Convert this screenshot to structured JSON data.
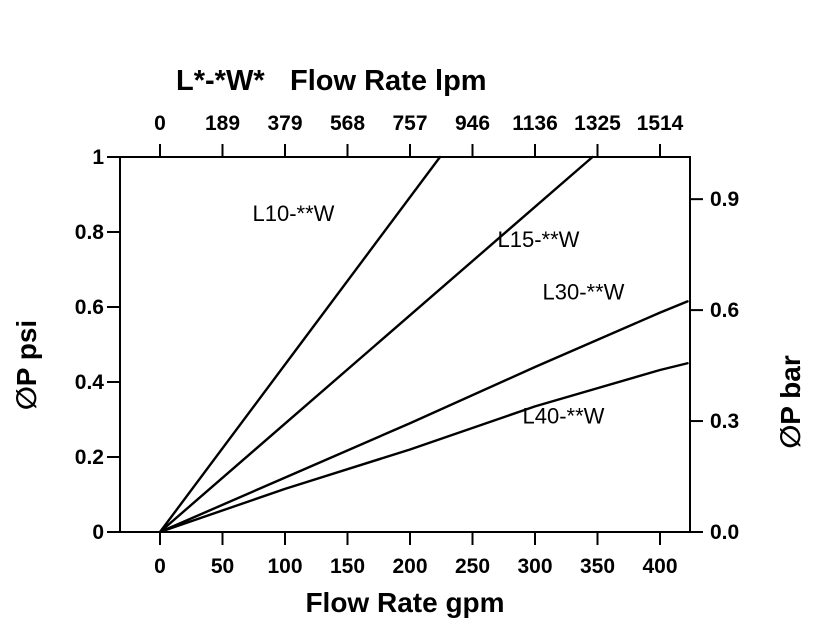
{
  "chart_data": {
    "type": "line",
    "title_prefix": "L*-*W*",
    "top_axis": {
      "title": "Flow Rate lpm",
      "tick_labels": [
        "0",
        "189",
        "379",
        "568",
        "757",
        "946",
        "1136",
        "1325",
        "1514"
      ],
      "tick_positions_gpm": [
        0,
        50,
        100,
        150,
        200,
        250,
        300,
        350,
        400
      ]
    },
    "bottom_axis": {
      "title": "Flow Rate gpm",
      "tick_labels": [
        "0",
        "50",
        "100",
        "150",
        "200",
        "250",
        "300",
        "350",
        "400"
      ],
      "tick_values": [
        0,
        50,
        100,
        150,
        200,
        250,
        300,
        350,
        400
      ]
    },
    "left_axis": {
      "title": "∅P psi",
      "tick_labels": [
        "0",
        "0.2",
        "0.4",
        "0.6",
        "0.8",
        "1"
      ],
      "tick_values": [
        0,
        0.2,
        0.4,
        0.6,
        0.8,
        1
      ],
      "range": [
        0,
        1
      ]
    },
    "right_axis": {
      "title": "∅P bar",
      "tick_labels": [
        "0.0",
        "0.3",
        "0.6",
        "0.9"
      ],
      "tick_values": [
        0,
        0.3,
        0.6,
        0.9
      ],
      "range": [
        0,
        1.014
      ]
    },
    "x_plot_range_gpm": [
      -32,
      424
    ],
    "grid": false,
    "line_color": "#000000",
    "series": [
      {
        "name": "L10-**W",
        "units": [
          "gpm",
          "psi"
        ],
        "points": [
          [
            0,
            0
          ],
          [
            112,
            0.5
          ],
          [
            224,
            1.0
          ]
        ],
        "label_at": [
          74,
          0.83
        ]
      },
      {
        "name": "L15-**W",
        "units": [
          "gpm",
          "psi"
        ],
        "points": [
          [
            0,
            0
          ],
          [
            173,
            0.5
          ],
          [
            346,
            1.0
          ]
        ],
        "label_at": [
          270,
          0.76
        ]
      },
      {
        "name": "L30-**W",
        "units": [
          "gpm",
          "psi"
        ],
        "points": [
          [
            0,
            0
          ],
          [
            100,
            0.145
          ],
          [
            200,
            0.29
          ],
          [
            300,
            0.44
          ],
          [
            400,
            0.585
          ],
          [
            422,
            0.615
          ]
        ],
        "label_at": [
          306,
          0.62
        ]
      },
      {
        "name": "L40-**W",
        "units": [
          "gpm",
          "psi"
        ],
        "points": [
          [
            0,
            0
          ],
          [
            100,
            0.115
          ],
          [
            200,
            0.22
          ],
          [
            300,
            0.335
          ],
          [
            400,
            0.432
          ],
          [
            422,
            0.45
          ]
        ],
        "label_at": [
          290,
          0.29
        ]
      }
    ]
  }
}
